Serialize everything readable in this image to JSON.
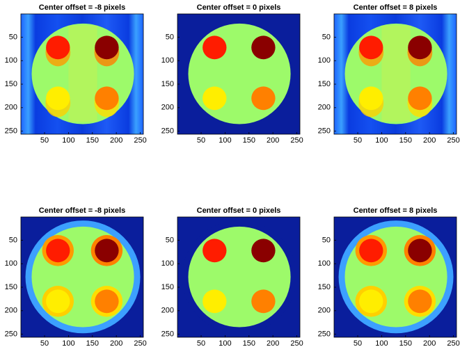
{
  "chart_data": [
    {
      "type": "image",
      "title": "Center offset = -8 pixels",
      "xlim": [
        0.5,
        256.5
      ],
      "ylim": [
        0.5,
        256.5
      ],
      "xticks": [
        50,
        100,
        150,
        200,
        250
      ],
      "yticks": [
        50,
        100,
        150,
        200,
        250
      ]
    },
    {
      "type": "image",
      "title": "Center offset = 0 pixels",
      "xlim": [
        0.5,
        256.5
      ],
      "ylim": [
        0.5,
        256.5
      ],
      "xticks": [
        50,
        100,
        150,
        200,
        250
      ],
      "yticks": [
        50,
        100,
        150,
        200,
        250
      ]
    },
    {
      "type": "image",
      "title": "Center offset = 8 pixels",
      "xlim": [
        0.5,
        256.5
      ],
      "ylim": [
        0.5,
        256.5
      ],
      "xticks": [
        50,
        100,
        150,
        200,
        250
      ],
      "yticks": [
        50,
        100,
        150,
        200,
        250
      ]
    },
    {
      "type": "image",
      "title": "Center offset = -8 pixels",
      "xlim": [
        0.5,
        256.5
      ],
      "ylim": [
        0.5,
        256.5
      ],
      "xticks": [
        50,
        100,
        150,
        200,
        250
      ],
      "yticks": [
        50,
        100,
        150,
        200,
        250
      ]
    },
    {
      "type": "image",
      "title": "Center offset = 0 pixels",
      "xlim": [
        0.5,
        256.5
      ],
      "ylim": [
        0.5,
        256.5
      ],
      "xticks": [
        50,
        100,
        150,
        200,
        250
      ],
      "yticks": [
        50,
        100,
        150,
        200,
        250
      ]
    },
    {
      "type": "image",
      "title": "Center offset = 8 pixels",
      "xlim": [
        0.5,
        256.5
      ],
      "ylim": [
        0.5,
        256.5
      ],
      "xticks": [
        50,
        100,
        150,
        200,
        250
      ],
      "yticks": [
        50,
        100,
        150,
        200,
        250
      ]
    }
  ]
}
